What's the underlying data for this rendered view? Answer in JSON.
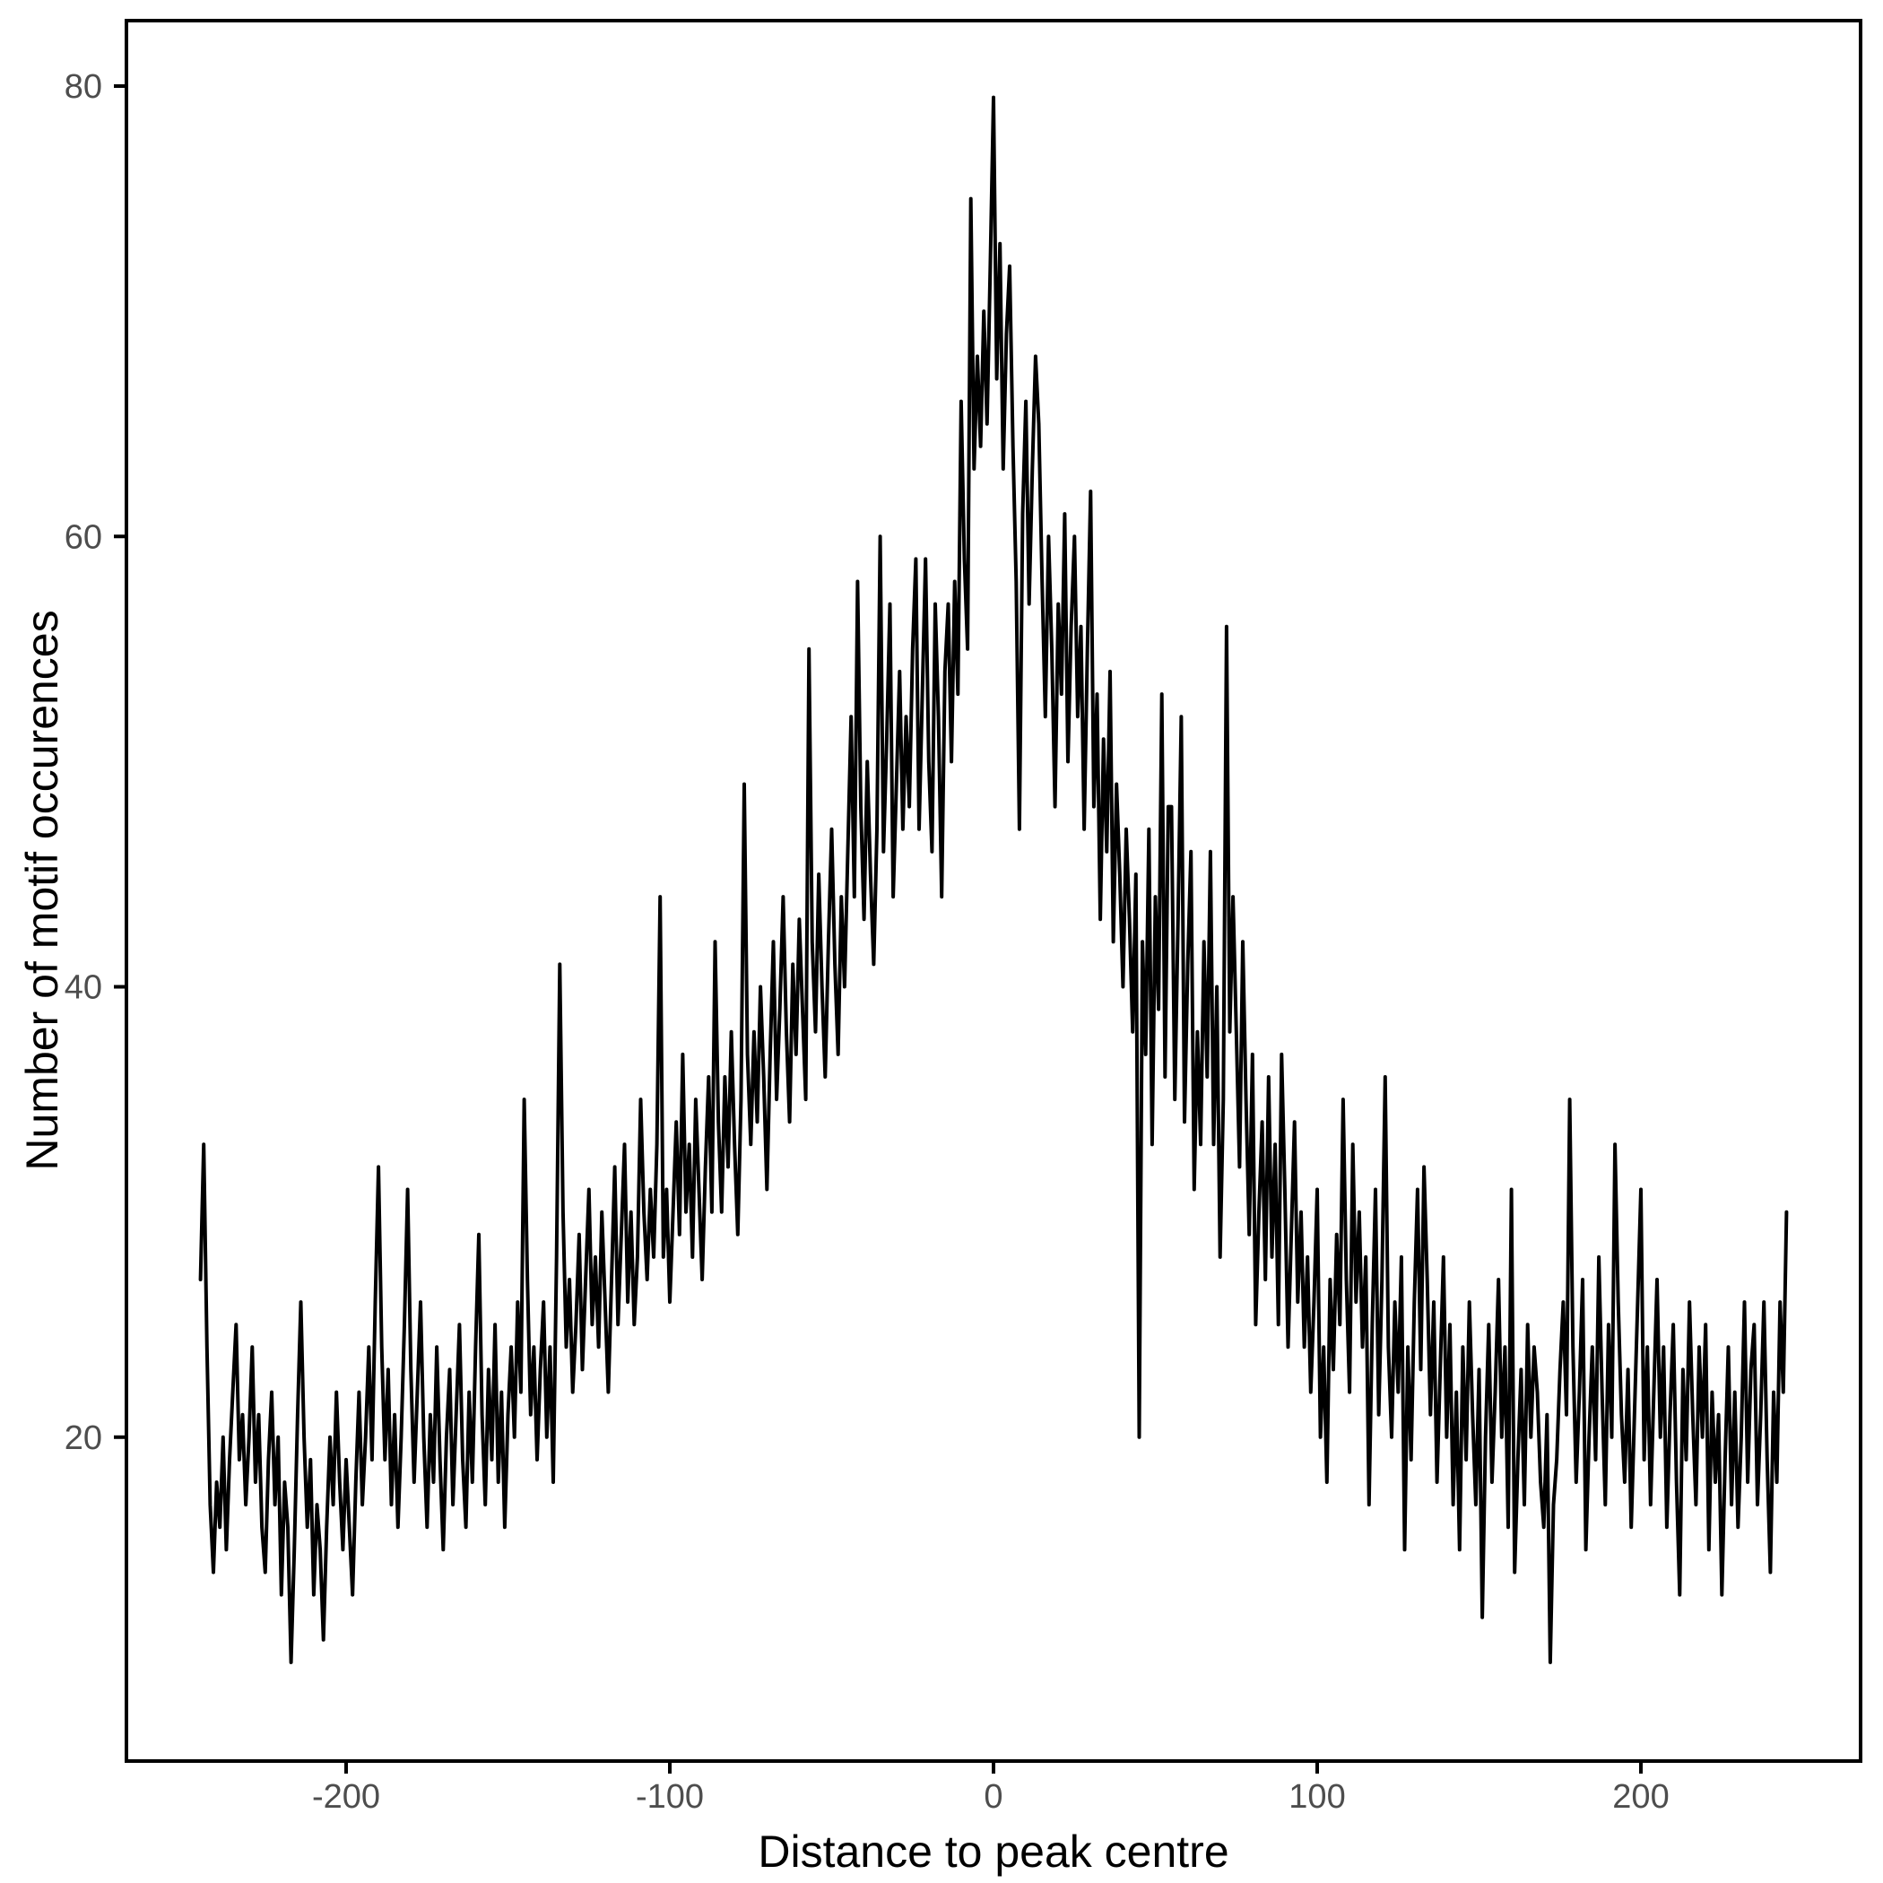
{
  "figure": {
    "background_color": "#ffffff",
    "panel_border_color": "#000000",
    "line_color": "#000000",
    "axis_text_color": "#4d4d4d",
    "axis_title_color": "#000000"
  },
  "chart_data": {
    "type": "line",
    "title": "",
    "xlabel": "Distance to peak centre",
    "ylabel": "Number of motif occurences",
    "legend": "none",
    "grid": "off",
    "xlim": [
      -269,
      269
    ],
    "ylim": [
      5.6,
      82.9
    ],
    "x_ticks": [
      -200,
      -100,
      0,
      100,
      200
    ],
    "y_ticks": [
      20,
      40,
      60,
      80
    ],
    "x_start": -245,
    "x_step": 1,
    "values": [
      27,
      33,
      24,
      17,
      14,
      18,
      16,
      20,
      15,
      19,
      22,
      25,
      19,
      21,
      17,
      20,
      24,
      18,
      21,
      16,
      14,
      19,
      22,
      17,
      20,
      13,
      18,
      16,
      10,
      15,
      21,
      26,
      20,
      16,
      19,
      13,
      17,
      15,
      11,
      16,
      20,
      17,
      22,
      18,
      15,
      19,
      16,
      13,
      18,
      22,
      17,
      20,
      24,
      19,
      26,
      32,
      24,
      19,
      23,
      17,
      21,
      16,
      20,
      25,
      31,
      23,
      18,
      22,
      26,
      20,
      16,
      21,
      18,
      24,
      19,
      15,
      20,
      23,
      17,
      21,
      25,
      19,
      16,
      22,
      18,
      24,
      29,
      21,
      17,
      23,
      19,
      25,
      18,
      22,
      16,
      21,
      24,
      20,
      26,
      22,
      35,
      27,
      21,
      24,
      19,
      23,
      26,
      20,
      24,
      18,
      28,
      41,
      30,
      24,
      27,
      22,
      25,
      29,
      23,
      27,
      31,
      25,
      28,
      24,
      30,
      26,
      22,
      27,
      32,
      25,
      29,
      33,
      26,
      30,
      25,
      28,
      35,
      30,
      27,
      31,
      28,
      33,
      44,
      28,
      31,
      26,
      30,
      34,
      29,
      37,
      30,
      33,
      28,
      35,
      31,
      27,
      32,
      36,
      30,
      42,
      34,
      30,
      36,
      32,
      38,
      33,
      29,
      35,
      49,
      37,
      33,
      38,
      34,
      40,
      36,
      31,
      37,
      42,
      35,
      39,
      44,
      38,
      34,
      41,
      37,
      43,
      39,
      35,
      55,
      42,
      38,
      45,
      40,
      36,
      42,
      47,
      41,
      37,
      44,
      40,
      46,
      52,
      44,
      58,
      48,
      43,
      50,
      45,
      41,
      47,
      60,
      46,
      51,
      57,
      44,
      49,
      54,
      47,
      52,
      48,
      55,
      59,
      47,
      53,
      59,
      50,
      46,
      57,
      52,
      44,
      54,
      57,
      50,
      58,
      53,
      66,
      59,
      55,
      75,
      63,
      68,
      64,
      70,
      65,
      72,
      79.5,
      67,
      73,
      63,
      69,
      72,
      64,
      58,
      47,
      61,
      66,
      57,
      63,
      68,
      65,
      58,
      52,
      60,
      55,
      48,
      57,
      53,
      61,
      50,
      56,
      60,
      52,
      56,
      47,
      55,
      62,
      48,
      53,
      43,
      51,
      46,
      54,
      42,
      49,
      45,
      40,
      47,
      43,
      38,
      45,
      20,
      42,
      37,
      47,
      33,
      44,
      39,
      53,
      36,
      48,
      48,
      35,
      43,
      52,
      34,
      41,
      46,
      31,
      38,
      33,
      42,
      36,
      46,
      33,
      40,
      28,
      35,
      56,
      38,
      44,
      38,
      32,
      42,
      35,
      29,
      37,
      25,
      30,
      34,
      27,
      36,
      28,
      33,
      25,
      37,
      31,
      24,
      29,
      34,
      26,
      30,
      24,
      28,
      22,
      26,
      31,
      20,
      24,
      18,
      27,
      23,
      29,
      25,
      35,
      27,
      22,
      33,
      26,
      30,
      24,
      28,
      17,
      25,
      31,
      21,
      27,
      36,
      24,
      20,
      26,
      22,
      28,
      15,
      24,
      19,
      26,
      31,
      23,
      32,
      27,
      21,
      26,
      18,
      23,
      28,
      20,
      25,
      17,
      22,
      15,
      24,
      19,
      26,
      21,
      17,
      23,
      12,
      20,
      25,
      18,
      22,
      27,
      20,
      24,
      16,
      31,
      14,
      19,
      23,
      17,
      25,
      20,
      24,
      22,
      18,
      16,
      21,
      10,
      17,
      19,
      23,
      26,
      21,
      35,
      24,
      18,
      22,
      27,
      15,
      20,
      24,
      19,
      28,
      22,
      17,
      25,
      20,
      33,
      26,
      21,
      18,
      23,
      16,
      21,
      26,
      31,
      19,
      24,
      17,
      22,
      27,
      20,
      24,
      16,
      21,
      25,
      18,
      13,
      23,
      19,
      26,
      21,
      17,
      24,
      20,
      25,
      15,
      22,
      18,
      21,
      13,
      19,
      24,
      17,
      22,
      16,
      20,
      26,
      18,
      23,
      25,
      17,
      21,
      26,
      19,
      14,
      22,
      18,
      26,
      22,
      30
    ]
  }
}
